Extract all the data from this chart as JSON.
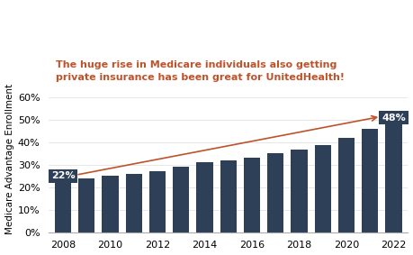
{
  "years": [
    2008,
    2009,
    2010,
    2011,
    2012,
    2013,
    2014,
    2015,
    2016,
    2017,
    2018,
    2019,
    2020,
    2021,
    2022
  ],
  "values": [
    0.22,
    0.24,
    0.25,
    0.26,
    0.27,
    0.29,
    0.31,
    0.32,
    0.33,
    0.35,
    0.37,
    0.39,
    0.42,
    0.46,
    0.48
  ],
  "bar_color": "#2e4057",
  "annotation_box_color": "#2e4057",
  "annotation_text_color": "#ffffff",
  "arrow_color": "#c0522a",
  "title_color": "#c0522a",
  "title_line1": "The huge rise in Medicare individuals also getting",
  "title_line2": "private insurance has been great for UnitedHealth!",
  "ylabel": "Medicare Advantage Enrollment",
  "ylim": [
    0,
    0.65
  ],
  "yticks": [
    0.0,
    0.1,
    0.2,
    0.3,
    0.4,
    0.5,
    0.6
  ],
  "ytick_labels": [
    "0%",
    "10%",
    "20%",
    "30%",
    "40%",
    "50%",
    "60%"
  ],
  "label_first": "22%",
  "label_last": "48%",
  "first_bar_idx": 0,
  "last_bar_idx": 14,
  "background_color": "#ffffff"
}
